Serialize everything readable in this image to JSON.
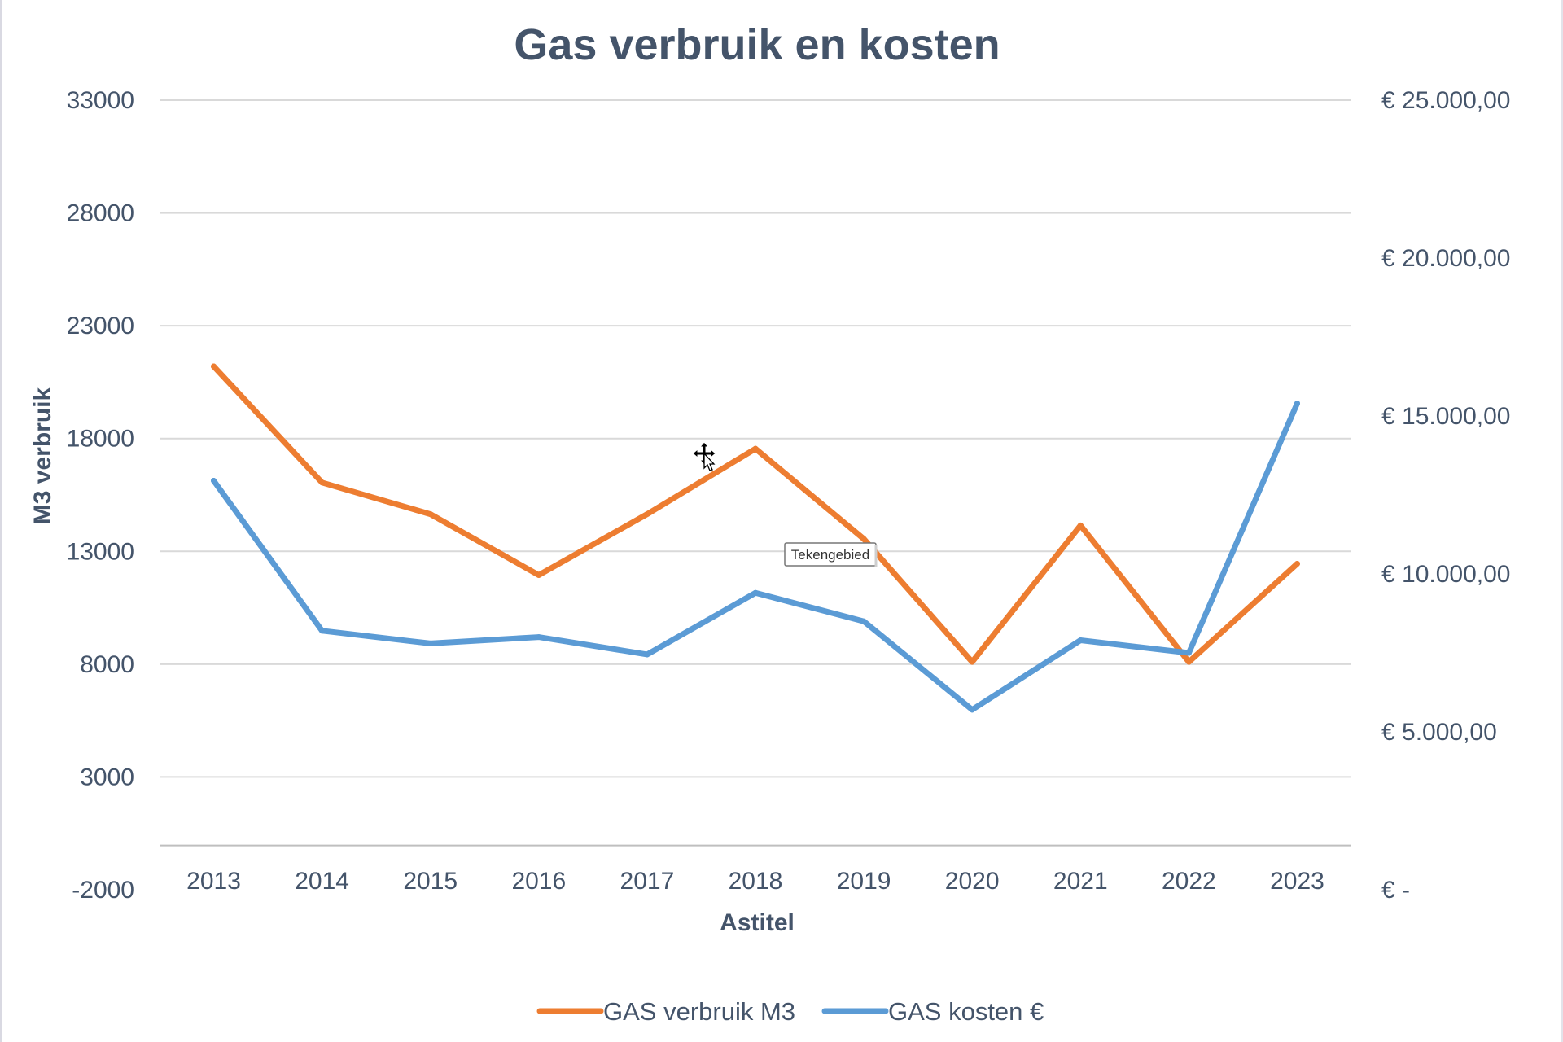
{
  "chart_data": {
    "type": "line",
    "title": "Gas verbruik en kosten",
    "xlabel": "Astitel",
    "ylabel": "M3 verbruik",
    "ylabel_right": "",
    "categories": [
      "2013",
      "2014",
      "2015",
      "2016",
      "2017",
      "2018",
      "2019",
      "2020",
      "2021",
      "2022",
      "2023"
    ],
    "y_ticks": [
      "33000",
      "28000",
      "23000",
      "18000",
      "13000",
      "8000",
      "3000",
      "-2000"
    ],
    "y_right_ticks": [
      "€ 25.000,00",
      "€ 20.000,00",
      "€ 15.000,00",
      "€ 10.000,00",
      "€ 5.000,00",
      "€ -"
    ],
    "ylim": [
      -2000,
      33000
    ],
    "ylim_right": [
      0,
      25000
    ],
    "grid": true,
    "legend_position": "bottom",
    "series": [
      {
        "name": "GAS verbruik M3",
        "axis": "left",
        "color": "#ed7d31",
        "values": [
          21200,
          16050,
          14650,
          11950,
          14650,
          17550,
          13550,
          8100,
          14150,
          8100,
          12450
        ]
      },
      {
        "name": "GAS kosten €",
        "axis": "right",
        "color": "#5b9bd5",
        "values": [
          12950,
          8200,
          7800,
          8000,
          7450,
          9400,
          8500,
          5700,
          7900,
          7500,
          15400
        ]
      }
    ]
  },
  "tooltip": {
    "label": "Tekengebied"
  },
  "cursor": {
    "icon": "move-cursor-icon"
  }
}
